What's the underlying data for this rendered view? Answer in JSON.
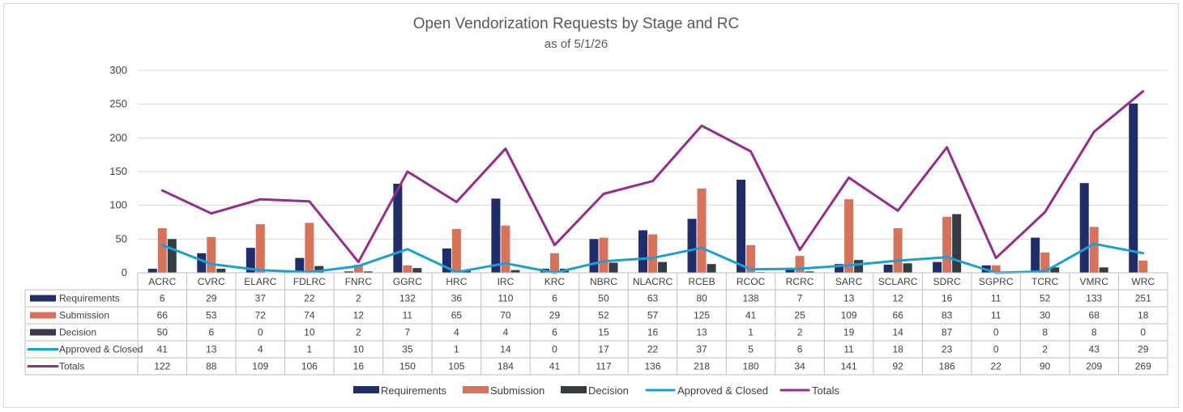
{
  "chart_data": {
    "type": "bar",
    "title": "Open Vendorization Requests by Stage and RC",
    "subtitle": "as of 5/1/26",
    "ylim": [
      0,
      300
    ],
    "yticks": [
      0,
      50,
      100,
      150,
      200,
      250,
      300
    ],
    "grid": true,
    "legend_position": "bottom",
    "data_table": true,
    "categories": [
      "ACRC",
      "CVRC",
      "ELARC",
      "FDLRC",
      "FNRC",
      "GGRC",
      "HRC",
      "IRC",
      "KRC",
      "NBRC",
      "NLACRC",
      "RCEB",
      "RCOC",
      "RCRC",
      "SARC",
      "SCLARC",
      "SDRC",
      "SGPRC",
      "TCRC",
      "VMRC",
      "WRC"
    ],
    "series": [
      {
        "name": "Requirements",
        "kind": "bar",
        "color": "#1f2d6b",
        "values": [
          6,
          29,
          37,
          22,
          2,
          132,
          36,
          110,
          6,
          50,
          63,
          80,
          138,
          7,
          13,
          12,
          16,
          11,
          52,
          133,
          251
        ]
      },
      {
        "name": "Submission",
        "kind": "bar",
        "color": "#d6735a",
        "values": [
          66,
          53,
          72,
          74,
          12,
          11,
          65,
          70,
          29,
          52,
          57,
          125,
          41,
          25,
          109,
          66,
          83,
          11,
          30,
          68,
          18
        ]
      },
      {
        "name": "Decision",
        "kind": "bar",
        "color": "#343c45",
        "values": [
          50,
          6,
          0,
          10,
          2,
          7,
          4,
          4,
          6,
          15,
          16,
          13,
          1,
          2,
          19,
          14,
          87,
          0,
          8,
          8,
          0
        ]
      },
      {
        "name": "Approved & Closed",
        "kind": "line",
        "color": "#1aa0d8",
        "values": [
          41,
          13,
          4,
          1,
          10,
          35,
          1,
          14,
          0,
          17,
          22,
          37,
          5,
          6,
          11,
          18,
          23,
          0,
          2,
          43,
          29
        ]
      },
      {
        "name": "Totals",
        "kind": "line",
        "color": "#972c8e",
        "values": [
          122,
          88,
          109,
          106,
          16,
          150,
          105,
          184,
          41,
          117,
          136,
          218,
          180,
          34,
          141,
          92,
          186,
          22,
          90,
          209,
          269
        ]
      }
    ]
  }
}
